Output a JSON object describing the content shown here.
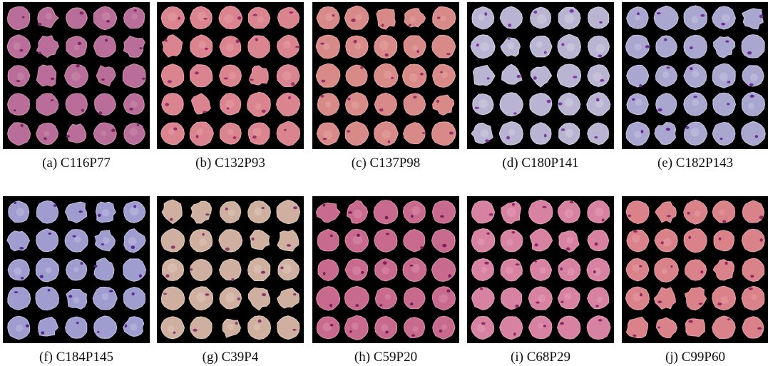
{
  "panels": [
    {
      "caption": "(a) C116P77",
      "colors": {
        "cell": "#b86e98",
        "edge": "#c98aa8",
        "spot": "#7a2a5e"
      }
    },
    {
      "caption": "(b) C132P93",
      "colors": {
        "cell": "#d9848e",
        "edge": "#e49aa2",
        "spot": "#9a2f6a"
      }
    },
    {
      "caption": "(c) C137P98",
      "colors": {
        "cell": "#d88a88",
        "edge": "#e5a29d",
        "spot": "#9a3068"
      }
    },
    {
      "caption": "(d) C180P141",
      "colors": {
        "cell": "#b8b4d2",
        "edge": "#cfcbe0",
        "spot": "#7a3aa0"
      }
    },
    {
      "caption": "(e) C182P143",
      "colors": {
        "cell": "#a9a6cf",
        "edge": "#c4c1df",
        "spot": "#6c2e98"
      }
    },
    {
      "caption": "(f) C184P145",
      "colors": {
        "cell": "#9f9cd0",
        "edge": "#bcb9e0",
        "spot": "#5b2a90"
      }
    },
    {
      "caption": "(g) C39P4",
      "colors": {
        "cell": "#cfb0a0",
        "edge": "#ddc4b6",
        "spot": "#8a3a70"
      }
    },
    {
      "caption": "(h) C59P20",
      "colors": {
        "cell": "#c76a8e",
        "edge": "#d98aa6",
        "spot": "#7a205a"
      }
    },
    {
      "caption": "(i) C68P29",
      "colors": {
        "cell": "#d682a0",
        "edge": "#e39ab4",
        "spot": "#8e2a68"
      }
    },
    {
      "caption": "(j) C99P60",
      "colors": {
        "cell": "#d9828a",
        "edge": "#e69aa0",
        "spot": "#962a64"
      }
    }
  ]
}
